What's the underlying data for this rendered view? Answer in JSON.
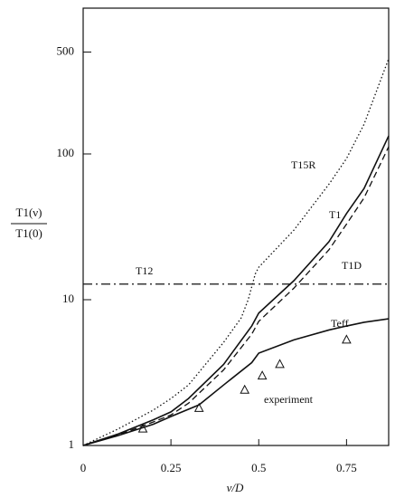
{
  "chart_data": {
    "type": "line",
    "ylabel": {
      "numerator": "T1(ν)",
      "denominator": "T1(0)"
    },
    "xlabel": "ν/D",
    "xlim": [
      0,
      0.87
    ],
    "ylim": [
      1,
      1000
    ],
    "log_y": true,
    "xticks": [
      0,
      0.25,
      0.5,
      0.75
    ],
    "yticks": [
      1,
      10,
      100,
      500
    ],
    "series": [
      {
        "name": "T15R",
        "color": "#111111",
        "style": "dotted",
        "x": [
          0,
          0.1,
          0.2,
          0.25,
          0.3,
          0.4,
          0.45,
          0.47,
          0.49,
          0.5,
          0.6,
          0.7,
          0.75,
          0.8,
          0.87
        ],
        "values": [
          1,
          1.3,
          1.75,
          2.1,
          2.6,
          5.1,
          7.5,
          10,
          15,
          16.7,
          30,
          62,
          93,
          160,
          450
        ]
      },
      {
        "name": "T1",
        "color": "#111111",
        "style": "solid",
        "x": [
          0,
          0.1,
          0.2,
          0.25,
          0.3,
          0.4,
          0.48,
          0.5,
          0.6,
          0.7,
          0.75,
          0.8,
          0.87
        ],
        "values": [
          1,
          1.2,
          1.5,
          1.7,
          2.1,
          3.6,
          6.6,
          8.1,
          13.5,
          25,
          39,
          58,
          133
        ]
      },
      {
        "name": "T1D",
        "color": "#111111",
        "style": "dashed",
        "x": [
          0,
          0.1,
          0.2,
          0.25,
          0.3,
          0.4,
          0.48,
          0.5,
          0.6,
          0.7,
          0.75,
          0.8,
          0.87
        ],
        "values": [
          1,
          1.18,
          1.45,
          1.62,
          1.95,
          3.3,
          5.8,
          7.1,
          12,
          22,
          33,
          50,
          112
        ]
      },
      {
        "name": "T12",
        "color": "#111111",
        "style": "dashdot",
        "x": [
          0,
          0.87
        ],
        "values": [
          12.8,
          12.8
        ]
      },
      {
        "name": "Teff",
        "color": "#111111",
        "style": "solid",
        "x": [
          0,
          0.1,
          0.2,
          0.25,
          0.33,
          0.4,
          0.48,
          0.5,
          0.6,
          0.7,
          0.75,
          0.8,
          0.87
        ],
        "values": [
          1,
          1.17,
          1.4,
          1.58,
          1.9,
          2.6,
          3.7,
          4.3,
          5.3,
          6.2,
          6.6,
          7,
          7.4
        ]
      },
      {
        "name": "experiment",
        "color": "#111111",
        "style": "markers",
        "x": [
          0.17,
          0.33,
          0.46,
          0.51,
          0.56,
          0.75
        ],
        "values": [
          1.3,
          1.8,
          2.4,
          3.0,
          3.6,
          5.3
        ]
      }
    ]
  }
}
